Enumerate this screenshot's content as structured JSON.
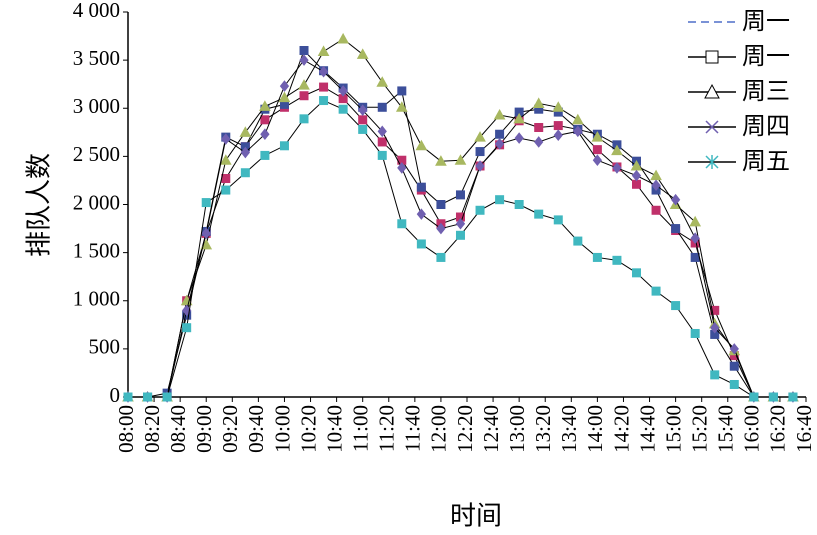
{
  "chart_data": {
    "type": "line",
    "ylabel": "排队人数",
    "xlabel": "时间",
    "x": [
      480,
      495,
      510,
      525,
      540,
      555,
      570,
      585,
      600,
      615,
      630,
      645,
      660,
      675,
      690,
      705,
      720,
      735,
      750,
      765,
      780,
      795,
      810,
      825,
      840,
      855,
      870,
      885,
      900,
      915,
      930,
      945,
      960,
      975,
      990
    ],
    "xlim": [
      480,
      1000
    ],
    "xticks": [
      {
        "value": 480,
        "label": "08:00"
      },
      {
        "value": 500,
        "label": "08:20"
      },
      {
        "value": 520,
        "label": "08:40"
      },
      {
        "value": 540,
        "label": "09:00"
      },
      {
        "value": 560,
        "label": "09:20"
      },
      {
        "value": 580,
        "label": "09:40"
      },
      {
        "value": 600,
        "label": "10:00"
      },
      {
        "value": 620,
        "label": "10:20"
      },
      {
        "value": 640,
        "label": "10:40"
      },
      {
        "value": 660,
        "label": "11:00"
      },
      {
        "value": 680,
        "label": "11:20"
      },
      {
        "value": 700,
        "label": "11:40"
      },
      {
        "value": 720,
        "label": "12:00"
      },
      {
        "value": 740,
        "label": "12:20"
      },
      {
        "value": 760,
        "label": "12:40"
      },
      {
        "value": 780,
        "label": "13:00"
      },
      {
        "value": 800,
        "label": "13:20"
      },
      {
        "value": 820,
        "label": "13:40"
      },
      {
        "value": 840,
        "label": "14:00"
      },
      {
        "value": 860,
        "label": "14:20"
      },
      {
        "value": 880,
        "label": "14:40"
      },
      {
        "value": 900,
        "label": "15:00"
      },
      {
        "value": 920,
        "label": "15:20"
      },
      {
        "value": 940,
        "label": "15:40"
      },
      {
        "value": 960,
        "label": "16:00"
      },
      {
        "value": 980,
        "label": "16:20"
      },
      {
        "value": 1000,
        "label": "16:40"
      }
    ],
    "ylim": [
      0,
      4000
    ],
    "yticks": [
      0,
      500,
      {
        "value": 1000,
        "label": "1 000"
      },
      {
        "value": 1500,
        "label": "1 500"
      },
      {
        "value": 2000,
        "label": "2 000"
      },
      {
        "value": 2500,
        "label": "2 500"
      },
      {
        "value": 3000,
        "label": "3 000"
      },
      {
        "value": 3500,
        "label": "3 500"
      },
      {
        "value": 4000,
        "label": "4 000"
      }
    ],
    "legend": "top-right",
    "series": [
      {
        "name": "周一",
        "color": "#c0306a",
        "values": [
          0,
          0,
          0,
          1000,
          1700,
          2270,
          2600,
          2880,
          3010,
          3130,
          3220,
          3100,
          2880,
          2650,
          2460,
          2150,
          1800,
          1870,
          2400,
          2620,
          2870,
          2800,
          2820,
          2780,
          2570,
          2390,
          2210,
          1940,
          1730,
          1600,
          900,
          430,
          0,
          0,
          0
        ]
      },
      {
        "name": "周一",
        "color": "#3c4f9a",
        "values": [
          0,
          0,
          40,
          850,
          1720,
          2700,
          2600,
          2990,
          3040,
          3600,
          3390,
          3210,
          3010,
          3010,
          3180,
          2180,
          2000,
          2100,
          2550,
          2730,
          2960,
          2990,
          2960,
          2780,
          2730,
          2620,
          2450,
          2150,
          1750,
          1450,
          650,
          320,
          0,
          0,
          0
        ]
      },
      {
        "name": "周三",
        "color": "#a8b860",
        "values": [
          0,
          0,
          0,
          1000,
          1580,
          2460,
          2750,
          3020,
          3110,
          3240,
          3590,
          3720,
          3560,
          3270,
          3010,
          2610,
          2450,
          2460,
          2700,
          2930,
          2890,
          3050,
          3010,
          2880,
          2700,
          2560,
          2400,
          2300,
          2000,
          1820,
          760,
          480,
          0,
          0,
          0
        ]
      },
      {
        "name": "周四",
        "color": "#7060b0",
        "values": [
          0,
          0,
          0,
          900,
          1700,
          2680,
          2540,
          2730,
          3230,
          3500,
          3380,
          3180,
          2980,
          2760,
          2380,
          1900,
          1750,
          1800,
          2400,
          2630,
          2690,
          2650,
          2720,
          2760,
          2460,
          2380,
          2300,
          2200,
          2050,
          1650,
          720,
          500,
          0,
          0,
          0
        ]
      },
      {
        "name": "周五",
        "color": "#40b8c0",
        "values": [
          0,
          0,
          0,
          720,
          2020,
          2150,
          2330,
          2510,
          2610,
          2890,
          3080,
          2990,
          2780,
          2510,
          1800,
          1590,
          1450,
          1680,
          1940,
          2050,
          2000,
          1900,
          1840,
          1620,
          1450,
          1420,
          1290,
          1100,
          950,
          660,
          230,
          130,
          0,
          0,
          0
        ]
      }
    ]
  }
}
